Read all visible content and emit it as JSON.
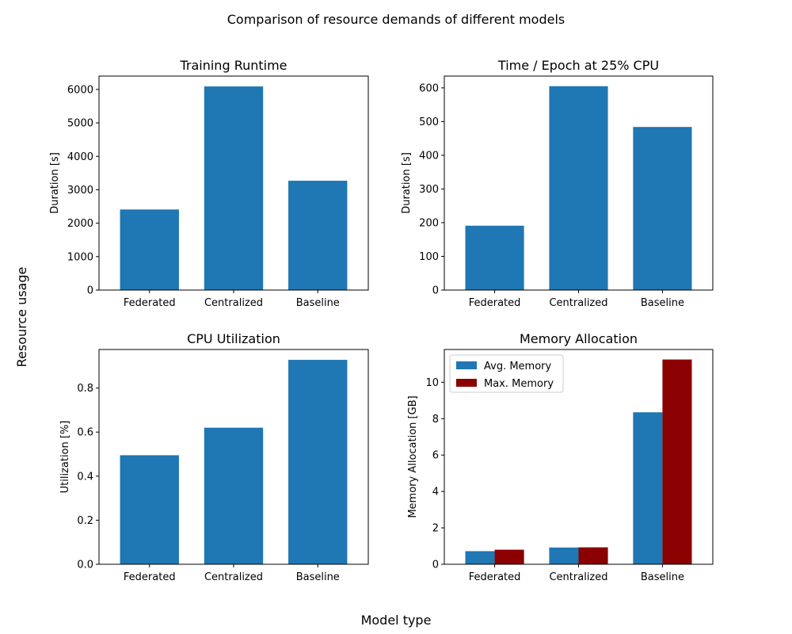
{
  "figure": {
    "suptitle": "Comparison of resource demands of different models",
    "supxlabel": "Model type",
    "supylabel": "Resource usage"
  },
  "chart_data": [
    {
      "type": "bar",
      "title": "Training Runtime",
      "xlabel": "",
      "ylabel": "Duration [s]",
      "categories": [
        "Federated",
        "Centralized",
        "Baseline"
      ],
      "series": [
        {
          "values": [
            2410,
            6090,
            3270
          ],
          "color": "#1f77b4"
        }
      ],
      "ylim": [
        0,
        6400
      ],
      "yticks": [
        0,
        1000,
        2000,
        3000,
        4000,
        5000,
        6000
      ],
      "ytick_labels": [
        "0",
        "1000",
        "2000",
        "3000",
        "4000",
        "5000",
        "6000"
      ],
      "legend": null
    },
    {
      "type": "bar",
      "title": "Time / Epoch at 25% CPU",
      "xlabel": "",
      "ylabel": "Duration [s]",
      "categories": [
        "Federated",
        "Centralized",
        "Baseline"
      ],
      "series": [
        {
          "values": [
            191,
            605,
            484
          ],
          "color": "#1f77b4"
        }
      ],
      "ylim": [
        0,
        635
      ],
      "yticks": [
        0,
        100,
        200,
        300,
        400,
        500,
        600
      ],
      "ytick_labels": [
        "0",
        "100",
        "200",
        "300",
        "400",
        "500",
        "600"
      ],
      "legend": null
    },
    {
      "type": "bar",
      "title": "CPU Utilization",
      "xlabel": "",
      "ylabel": "Utilization [%]",
      "categories": [
        "Federated",
        "Centralized",
        "Baseline"
      ],
      "series": [
        {
          "values": [
            0.495,
            0.62,
            0.928
          ],
          "color": "#1f77b4"
        }
      ],
      "ylim": [
        0,
        0.975
      ],
      "yticks": [
        0,
        0.2,
        0.4,
        0.6,
        0.8
      ],
      "ytick_labels": [
        "0.0",
        "0.2",
        "0.4",
        "0.6",
        "0.8"
      ],
      "legend": null
    },
    {
      "type": "bar",
      "title": "Memory Allocation",
      "xlabel": "",
      "ylabel": "Memory Allocation [GB]",
      "categories": [
        "Federated",
        "Centralized",
        "Baseline"
      ],
      "series": [
        {
          "name": "Avg. Memory",
          "values": [
            0.72,
            0.92,
            8.35
          ],
          "color": "#1f77b4"
        },
        {
          "name": "Max. Memory",
          "values": [
            0.8,
            0.93,
            11.25
          ],
          "color": "#8b0000"
        }
      ],
      "ylim": [
        0,
        11.8
      ],
      "yticks": [
        0,
        2,
        4,
        6,
        8,
        10
      ],
      "ytick_labels": [
        "0",
        "2",
        "4",
        "6",
        "8",
        "10"
      ],
      "legend": "upper-left"
    }
  ]
}
